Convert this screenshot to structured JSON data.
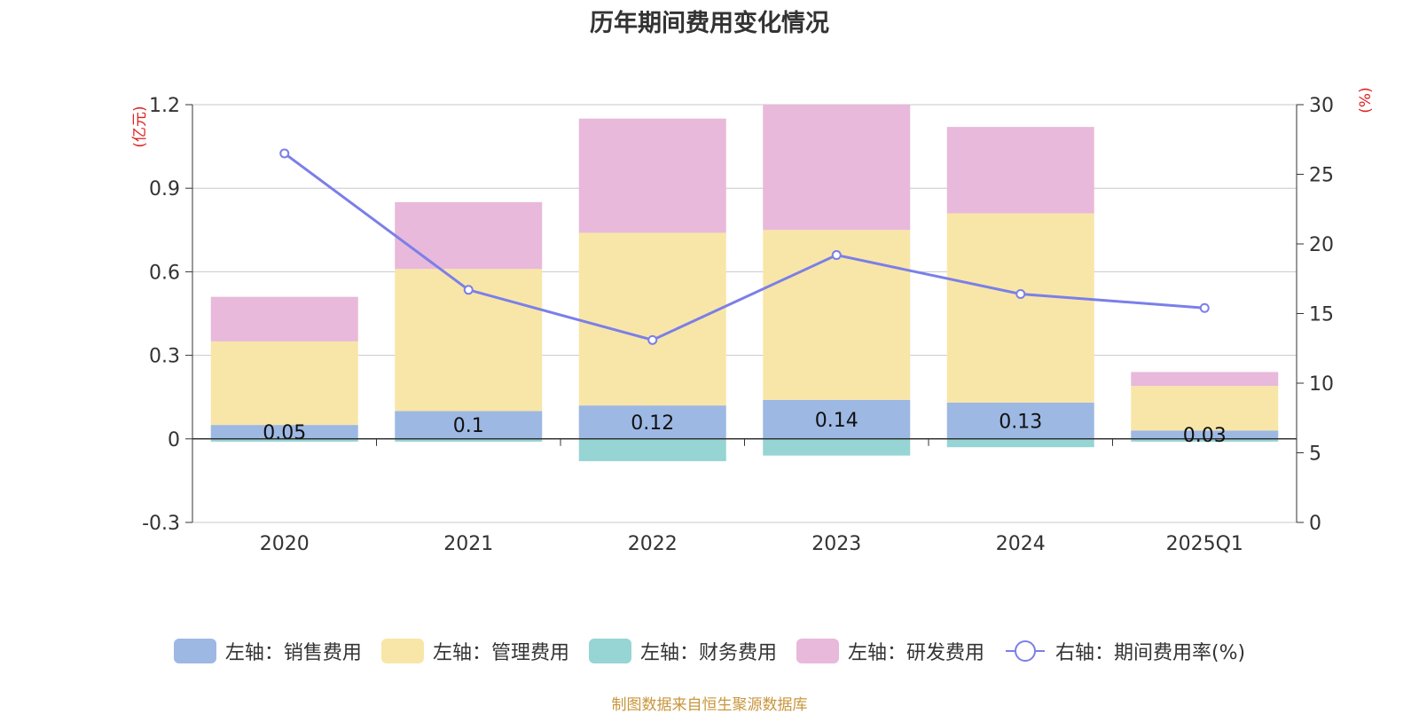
{
  "title": "历年期间费用变化情况",
  "source": "制图数据来自恒生聚源数据库",
  "colors": {
    "sales": "#9db8e3",
    "admin": "#f8e6a8",
    "finance": "#97d4d4",
    "rnd": "#e8b9da",
    "rate": "#7b7fe8"
  },
  "chart_data": {
    "type": "bar",
    "stacked": true,
    "categories": [
      "2020",
      "2021",
      "2022",
      "2023",
      "2024",
      "2025Q1"
    ],
    "left_axis": {
      "unit": "(亿元)",
      "ylim": [
        -0.3,
        1.2
      ],
      "ticks": [
        "1.2",
        "0.9",
        "0.6",
        "0.3",
        "0",
        "-0.3"
      ]
    },
    "right_axis": {
      "unit": "(%)",
      "ylim": [
        0,
        30
      ],
      "ticks": [
        "30",
        "25",
        "20",
        "15",
        "10",
        "5",
        "0"
      ]
    },
    "series": [
      {
        "name": "左轴：销售费用",
        "values": [
          0.05,
          0.1,
          0.12,
          0.14,
          0.13,
          0.03
        ],
        "labels": [
          "0.05",
          "0.1",
          "0.12",
          "0.14",
          "0.13",
          "0.03"
        ]
      },
      {
        "name": "左轴：管理费用",
        "values": [
          0.3,
          0.51,
          0.62,
          0.61,
          0.68,
          0.16
        ]
      },
      {
        "name": "左轴：财务费用",
        "values": [
          -0.01,
          -0.01,
          -0.08,
          -0.06,
          -0.03,
          -0.01
        ]
      },
      {
        "name": "左轴：研发费用",
        "values": [
          0.16,
          0.24,
          0.41,
          0.45,
          0.31,
          0.05
        ]
      }
    ],
    "line_series": {
      "name": "右轴：期间费用率(%)",
      "values": [
        26.5,
        16.7,
        13.1,
        19.2,
        16.4,
        15.4
      ]
    },
    "grid": true,
    "legend": "bottom"
  }
}
